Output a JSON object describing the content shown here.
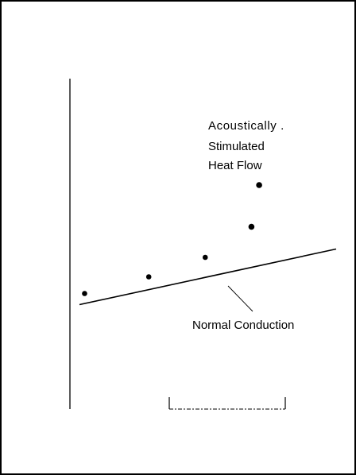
{
  "chart_data": {
    "type": "scatter",
    "title": "",
    "xlabel": "",
    "ylabel": "",
    "xlim": [
      0,
      10
    ],
    "ylim": [
      0,
      10
    ],
    "grid": false,
    "series": [
      {
        "points": [
          {
            "x": 0.2,
            "y": 2.3
          },
          {
            "x": 2.7,
            "y": 2.9
          },
          {
            "x": 4.9,
            "y": 3.6
          },
          {
            "x": 6.7,
            "y": 4.7
          },
          {
            "x": 7.0,
            "y": 6.2
          }
        ]
      }
    ],
    "reference_line": {
      "label": "Normal Conduction",
      "points": [
        {
          "x": 0.0,
          "y": 1.9
        },
        {
          "x": 10.0,
          "y": 3.9
        }
      ]
    },
    "annotations": [
      {
        "text_lines": [
          "Acoustically .",
          "Stimulated",
          "Heat Flow"
        ]
      }
    ]
  }
}
